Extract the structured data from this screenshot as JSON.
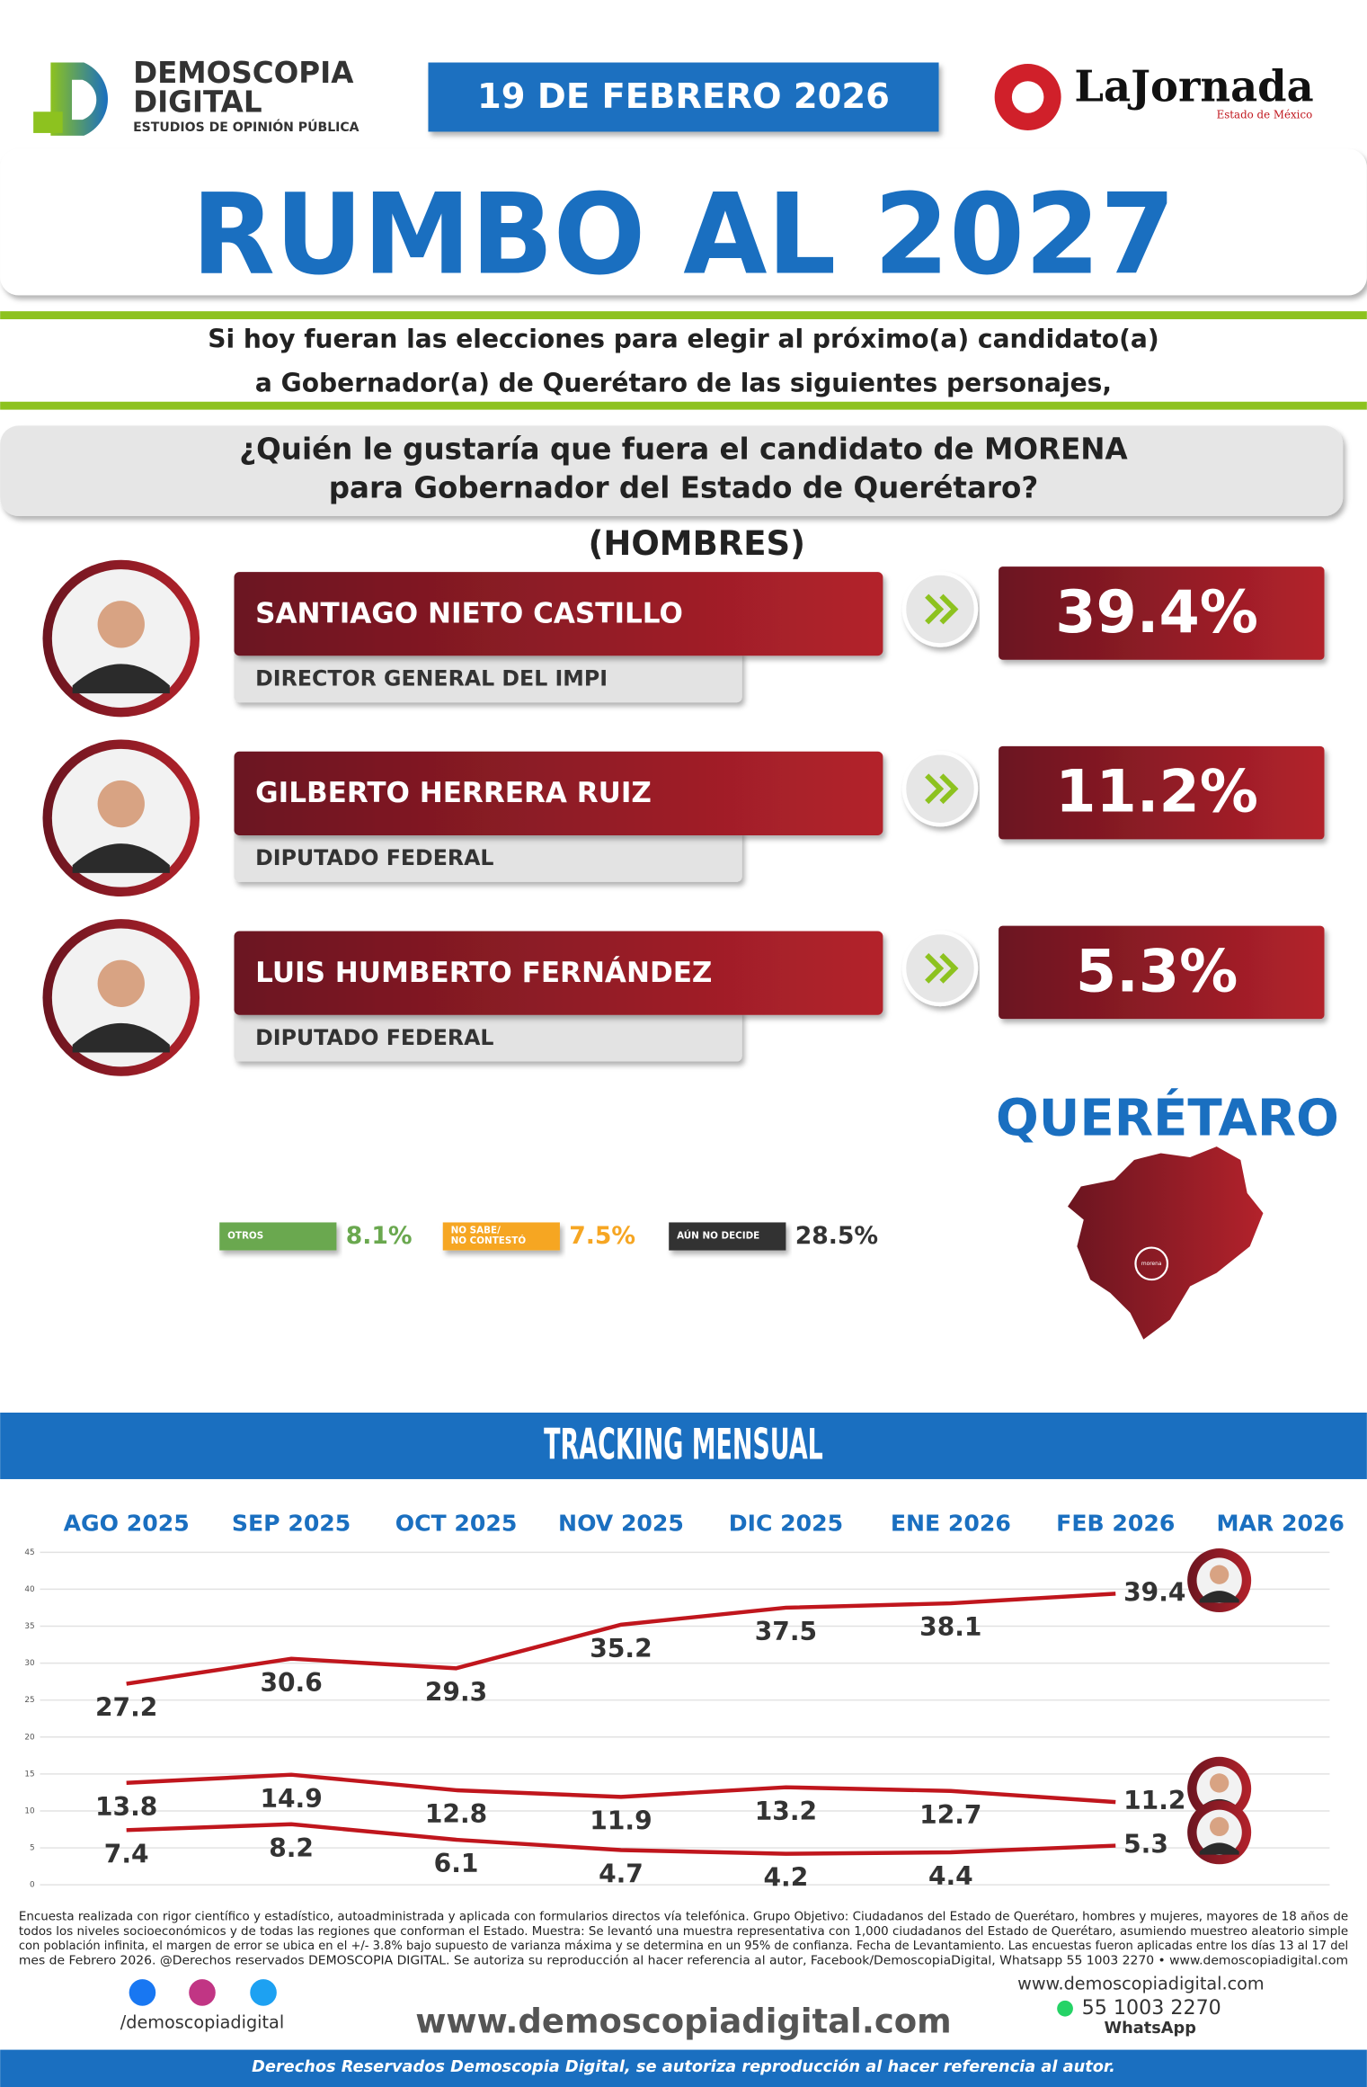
{
  "header": {
    "brand": "DEMOSCOPIA",
    "brand2": "DIGITAL",
    "brand_sub": "ESTUDIOS DE OPINIÓN PÚBLICA",
    "date": "19 DE FEBRERO 2026",
    "partner": "LaJornada",
    "partner_sub": "Estado de México"
  },
  "title": "RUMBO AL 2027",
  "intro": [
    "Si hoy fueran las elecciones para elegir al próximo(a) candidato(a)",
    "a Gobernador(a) de Querétaro de las siguientes personajes,"
  ],
  "question": [
    "¿Quién le gustaría que fuera el candidato de MORENA",
    "para Gobernador del Estado de Querétaro?"
  ],
  "group": "(HOMBRES)",
  "candidates": [
    {
      "name": "SANTIAGO NIETO CASTILLO",
      "role": "DIRECTOR GENERAL DEL IMPI",
      "percent": "39.4%"
    },
    {
      "name": "GILBERTO HERRERA RUIZ",
      "role": "DIPUTADO FEDERAL",
      "percent": "11.2%"
    },
    {
      "name": "LUIS HUMBERTO FERNÁNDEZ",
      "role": "DIPUTADO FEDERAL",
      "percent": "5.3%"
    }
  ],
  "others": [
    {
      "label": [
        "OTROS"
      ],
      "percent": "8.1%",
      "color": "#6aa84f"
    },
    {
      "label": [
        "NO SABE/",
        "NO CONTESTÓ"
      ],
      "percent": "7.5%",
      "color": "#f6a623"
    },
    {
      "label": [
        "AÚN NO DECIDE"
      ],
      "percent": "28.5%",
      "color": "#333333"
    }
  ],
  "state": "QUERÉTARO",
  "map_badge": "morena",
  "tracking_title": "TRACKING MENSUAL",
  "chart_data": {
    "type": "line",
    "categories": [
      "AGO 2025",
      "SEP 2025",
      "OCT 2025",
      "NOV 2025",
      "DIC 2025",
      "ENE 2026",
      "FEB 2026",
      "MAR 2026"
    ],
    "series": [
      {
        "color": "#c0161d",
        "values": [
          27.2,
          30.6,
          29.3,
          35.2,
          37.5,
          38.1,
          39.4,
          null
        ]
      },
      {
        "color": "#c0161d",
        "values": [
          13.8,
          14.9,
          12.8,
          11.9,
          13.2,
          12.7,
          11.2,
          null
        ]
      },
      {
        "color": "#c0161d",
        "values": [
          7.4,
          8.2,
          6.1,
          4.7,
          4.2,
          4.4,
          5.3,
          null
        ]
      }
    ],
    "ylim": [
      0,
      45
    ],
    "yticks": [
      0,
      5,
      10,
      15,
      20,
      25,
      30,
      35,
      40,
      45
    ],
    "grid": true
  },
  "footer": {
    "method": [
      "Encuesta realizada con rigor científico y estadístico, autoadministrada y aplicada con formularios directos vía telefónica. Grupo Objetivo: Ciudadanos del Estado de Querétaro, hombres y mujeres, mayores de 18 años de",
      "todos los niveles socioeconómicos y de todas las regiones que conforman el Estado. Muestra: Se levantó una muestra representativa con 1,000 ciudadanos del Estado de Querétaro, asumiendo muestreo aleatorio simple",
      "con población infinita, el margen de error se ubica en el +/- 3.8% bajo supuesto de varianza máxima y se determina en un 95% de confianza. Fecha de Levantamiento. Las encuestas fueron aplicadas entre los días 13 al 17 del",
      "mes de Febrero 2026. @Derechos reservados DEMOSCOPIA DIGITAL. Se autoriza su reproducción al hacer referencia al autor, Facebook/DemoscopiaDigital, Whatsapp 55 1003 2270 • www.demoscopiadigital.com"
    ],
    "social": "/demoscopiadigital",
    "site": "www.demoscopiadigital.com",
    "site_small": "www.demoscopiadigital.com",
    "phone": "55 1003 2270",
    "whatsapp": "WhatsApp",
    "rights": "Derechos Reservados Demoscopia Digital, se autoriza reproducción al hacer referencia al autor."
  }
}
